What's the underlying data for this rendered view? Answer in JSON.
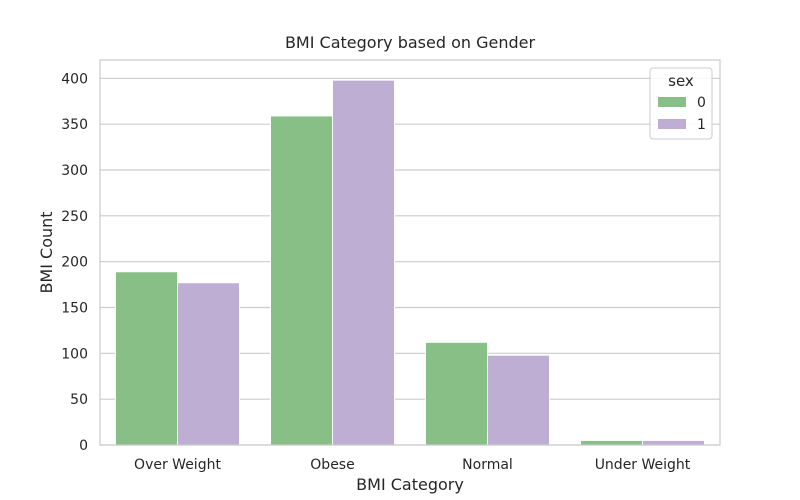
{
  "chart_data": {
    "type": "bar",
    "title": "BMI Category based on Gender",
    "xlabel": "BMI Category",
    "ylabel": "BMI Count",
    "categories": [
      "Over Weight",
      "Obese",
      "Normal",
      "Under Weight"
    ],
    "series": [
      {
        "name": "0",
        "values": [
          189,
          359,
          112,
          5
        ],
        "color": "#88bf86"
      },
      {
        "name": "1",
        "values": [
          177,
          398,
          98,
          5
        ],
        "color": "#beaed4"
      }
    ],
    "ylim": [
      0,
      420
    ],
    "yticks": [
      0,
      50,
      100,
      150,
      200,
      250,
      300,
      350,
      400
    ],
    "grid": "horizontal",
    "legend": {
      "title": "sex",
      "position": "top-right"
    },
    "colors": {
      "grid": "#cccccc",
      "frame": "#cccccc",
      "text": "#262626"
    }
  }
}
